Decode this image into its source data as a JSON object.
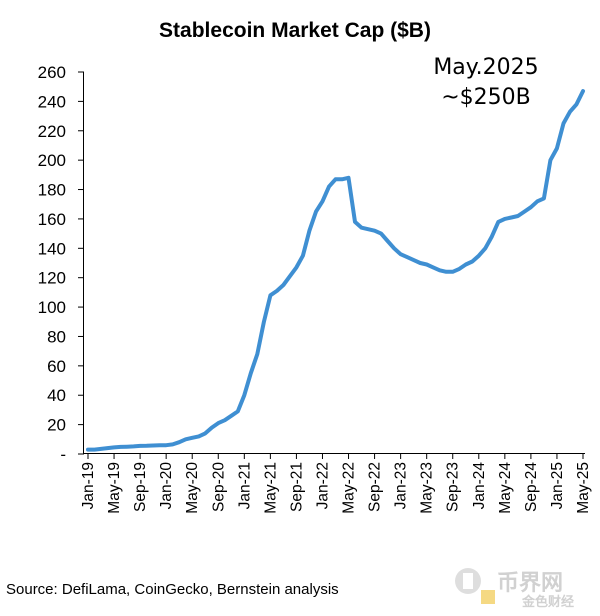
{
  "chart_data": {
    "type": "line",
    "title": "Stablecoin Market Cap ($B)",
    "xlabel": "",
    "ylabel": "",
    "ylim": [
      0,
      260
    ],
    "y_ticks": [
      "-",
      "20",
      "40",
      "60",
      "80",
      "100",
      "120",
      "140",
      "160",
      "180",
      "200",
      "220",
      "240",
      "260"
    ],
    "x_ticks": [
      "Jan-19",
      "May-19",
      "Sep-19",
      "Jan-20",
      "May-20",
      "Sep-20",
      "Jan-21",
      "May-21",
      "Sep-21",
      "Jan-22",
      "May-22",
      "Sep-22",
      "Jan-23",
      "May-23",
      "Sep-23",
      "Jan-24",
      "May-24",
      "Sep-24",
      "Jan-25",
      "May-25"
    ],
    "grid": false,
    "legend": "none",
    "series_color": "#3f8fd2",
    "series": [
      {
        "x": [
          "2019-01",
          "2019-02",
          "2019-03",
          "2019-04",
          "2019-05",
          "2019-06",
          "2019-07",
          "2019-08",
          "2019-09",
          "2019-10",
          "2019-11",
          "2019-12",
          "2020-01",
          "2020-02",
          "2020-03",
          "2020-04",
          "2020-05",
          "2020-06",
          "2020-07",
          "2020-08",
          "2020-09",
          "2020-10",
          "2020-11",
          "2020-12",
          "2021-01",
          "2021-02",
          "2021-03",
          "2021-04",
          "2021-05",
          "2021-06",
          "2021-07",
          "2021-08",
          "2021-09",
          "2021-10",
          "2021-11",
          "2021-12",
          "2022-01",
          "2022-02",
          "2022-03",
          "2022-04",
          "2022-05",
          "2022-06",
          "2022-07",
          "2022-08",
          "2022-09",
          "2022-10",
          "2022-11",
          "2022-12",
          "2023-01",
          "2023-02",
          "2023-03",
          "2023-04",
          "2023-05",
          "2023-06",
          "2023-07",
          "2023-08",
          "2023-09",
          "2023-10",
          "2023-11",
          "2023-12",
          "2024-01",
          "2024-02",
          "2024-03",
          "2024-04",
          "2024-05",
          "2024-06",
          "2024-07",
          "2024-08",
          "2024-09",
          "2024-10",
          "2024-11",
          "2024-12",
          "2025-01",
          "2025-02",
          "2025-03",
          "2025-04",
          "2025-05"
        ],
        "values": [
          3,
          3,
          3.5,
          4,
          4.5,
          4.8,
          5,
          5.2,
          5.5,
          5.6,
          5.8,
          6,
          6,
          6.5,
          8,
          10,
          11,
          12,
          14,
          18,
          21,
          23,
          26,
          29,
          40,
          55,
          68,
          90,
          108,
          111,
          115,
          121,
          127,
          135,
          152,
          165,
          172,
          182,
          187,
          187,
          188,
          158,
          154,
          153,
          152,
          150,
          145,
          140,
          136,
          134,
          132,
          130,
          129,
          127,
          125,
          124,
          124,
          126,
          129,
          131,
          135,
          140,
          148,
          158,
          160,
          161,
          162,
          165,
          168,
          172,
          174,
          200,
          208,
          225,
          233,
          238,
          247
        ]
      }
    ],
    "annotations": [
      "May.2025",
      "~$250B"
    ],
    "source": "Source: DefiLama, CoinGecko, Bernstein analysis",
    "watermark": [
      "币界网",
      "金色财经"
    ]
  }
}
